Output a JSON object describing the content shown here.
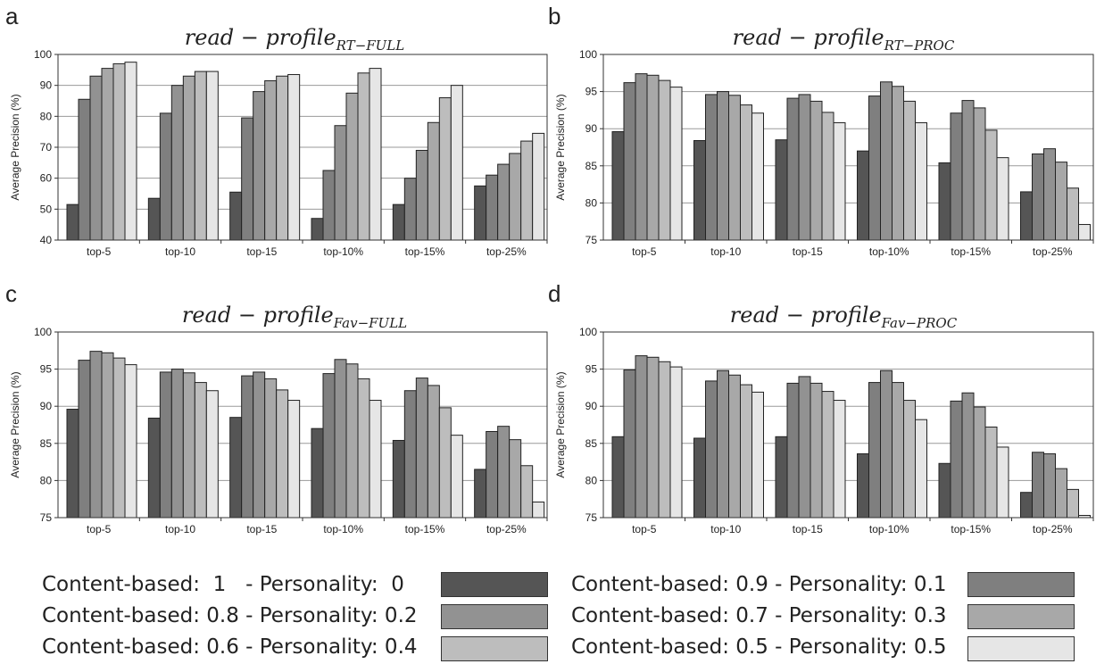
{
  "panels": [
    {
      "letter": "a",
      "title_base": "read − profile",
      "title_sub": "RT−FULL"
    },
    {
      "letter": "b",
      "title_base": "read − profile",
      "title_sub": "RT−PROC"
    },
    {
      "letter": "c",
      "title_base": "read − profile",
      "title_sub": "Fav−FULL"
    },
    {
      "letter": "d",
      "title_base": "read − profile",
      "title_sub": "Fav−PROC"
    }
  ],
  "series_colors": [
    "#555555",
    "#7f7f7f",
    "#929292",
    "#a8a8a8",
    "#bdbdbd",
    "#e6e6e6"
  ],
  "legend": [
    {
      "label": "Content-based:  1   - Personality:  0"
    },
    {
      "label": "Content-based: 0.9 - Personality: 0.1"
    },
    {
      "label": "Content-based: 0.8 - Personality: 0.2"
    },
    {
      "label": "Content-based: 0.7 - Personality: 0.3"
    },
    {
      "label": "Content-based: 0.6 - Personality: 0.4"
    },
    {
      "label": "Content-based: 0.5 - Personality: 0.5"
    }
  ],
  "chart_data": [
    {
      "type": "bar",
      "title": "read − profile RT−FULL",
      "ylabel": "Average Precision (%)",
      "ylim": [
        40,
        100
      ],
      "yticks": [
        40,
        50,
        60,
        70,
        80,
        90,
        100
      ],
      "categories": [
        "top-5",
        "top-10",
        "top-15",
        "top-10%",
        "top-15%",
        "top-25%"
      ],
      "grid": true,
      "series": [
        {
          "name": "Content-based:  1   - Personality:  0",
          "values": [
            51.5,
            53.5,
            55.5,
            47,
            51.5,
            57.5
          ]
        },
        {
          "name": "Content-based: 0.9 - Personality: 0.1",
          "values": [
            85.5,
            81,
            79.5,
            62.5,
            60,
            61
          ]
        },
        {
          "name": "Content-based: 0.8 - Personality: 0.2",
          "values": [
            93,
            90,
            88,
            77,
            69,
            64.5
          ]
        },
        {
          "name": "Content-based: 0.7 - Personality: 0.3",
          "values": [
            95.5,
            93,
            91.5,
            87.5,
            78,
            68
          ]
        },
        {
          "name": "Content-based: 0.6 - Personality: 0.4",
          "values": [
            97,
            94.5,
            93,
            94,
            86,
            72
          ]
        },
        {
          "name": "Content-based: 0.5 - Personality: 0.5",
          "values": [
            97.5,
            94.5,
            93.5,
            95.5,
            90,
            74.5
          ]
        }
      ]
    },
    {
      "type": "bar",
      "title": "read − profile RT−PROC",
      "ylabel": "Average Precision (%)",
      "ylim": [
        75,
        100
      ],
      "yticks": [
        75,
        80,
        85,
        90,
        95,
        100
      ],
      "categories": [
        "top-5",
        "top-10",
        "top-15",
        "top-10%",
        "top-15%",
        "top-25%"
      ],
      "grid": true,
      "series": [
        {
          "name": "Content-based:  1   - Personality:  0",
          "values": [
            89.6,
            88.4,
            88.5,
            87,
            85.4,
            81.5
          ]
        },
        {
          "name": "Content-based: 0.9 - Personality: 0.1",
          "values": [
            96.2,
            94.6,
            94.1,
            94.4,
            92.1,
            86.6
          ]
        },
        {
          "name": "Content-based: 0.8 - Personality: 0.2",
          "values": [
            97.4,
            95,
            94.6,
            96.3,
            93.8,
            87.3
          ]
        },
        {
          "name": "Content-based: 0.7 - Personality: 0.3",
          "values": [
            97.2,
            94.5,
            93.7,
            95.7,
            92.8,
            85.5
          ]
        },
        {
          "name": "Content-based: 0.6 - Personality: 0.4",
          "values": [
            96.5,
            93.2,
            92.2,
            93.7,
            89.8,
            82
          ]
        },
        {
          "name": "Content-based: 0.5 - Personality: 0.5",
          "values": [
            95.6,
            92.1,
            90.8,
            90.8,
            86.1,
            77.1
          ]
        }
      ]
    },
    {
      "type": "bar",
      "title": "read − profile Fav−FULL",
      "ylabel": "Average Precision (%)",
      "ylim": [
        75,
        100
      ],
      "yticks": [
        75,
        80,
        85,
        90,
        95,
        100
      ],
      "categories": [
        "top-5",
        "top-10",
        "top-15",
        "top-10%",
        "top-15%",
        "top-25%"
      ],
      "grid": true,
      "series": [
        {
          "name": "Content-based:  1   - Personality:  0",
          "values": [
            89.6,
            88.4,
            88.5,
            87,
            85.4,
            81.5
          ]
        },
        {
          "name": "Content-based: 0.9 - Personality: 0.1",
          "values": [
            96.2,
            94.6,
            94.1,
            94.4,
            92.1,
            86.6
          ]
        },
        {
          "name": "Content-based: 0.8 - Personality: 0.2",
          "values": [
            97.4,
            95,
            94.6,
            96.3,
            93.8,
            87.3
          ]
        },
        {
          "name": "Content-based: 0.7 - Personality: 0.3",
          "values": [
            97.2,
            94.5,
            93.7,
            95.7,
            92.8,
            85.5
          ]
        },
        {
          "name": "Content-based: 0.6 - Personality: 0.4",
          "values": [
            96.5,
            93.2,
            92.2,
            93.7,
            89.8,
            82
          ]
        },
        {
          "name": "Content-based: 0.5 - Personality: 0.5",
          "values": [
            95.6,
            92.1,
            90.8,
            90.8,
            86.1,
            77.1
          ]
        }
      ]
    },
    {
      "type": "bar",
      "title": "read − profile Fav−PROC",
      "ylabel": "Average Precision (%)",
      "ylim": [
        75,
        100
      ],
      "yticks": [
        75,
        80,
        85,
        90,
        95,
        100
      ],
      "categories": [
        "top-5",
        "top-10",
        "top-15",
        "top-10%",
        "top-15%",
        "top-25%"
      ],
      "grid": true,
      "series": [
        {
          "name": "Content-based:  1   - Personality:  0",
          "values": [
            85.9,
            85.7,
            85.9,
            83.6,
            82.3,
            78.4
          ]
        },
        {
          "name": "Content-based: 0.9 - Personality: 0.1",
          "values": [
            94.9,
            93.4,
            93.1,
            93.2,
            90.7,
            83.8
          ]
        },
        {
          "name": "Content-based: 0.8 - Personality: 0.2",
          "values": [
            96.8,
            94.8,
            94,
            94.8,
            91.8,
            83.6
          ]
        },
        {
          "name": "Content-based: 0.7 - Personality: 0.3",
          "values": [
            96.6,
            94.2,
            93.1,
            93.2,
            89.9,
            81.6
          ]
        },
        {
          "name": "Content-based: 0.6 - Personality: 0.4",
          "values": [
            96,
            92.9,
            92,
            90.8,
            87.2,
            78.8
          ]
        },
        {
          "name": "Content-based: 0.5 - Personality: 0.5",
          "values": [
            95.3,
            91.9,
            90.8,
            88.2,
            84.5,
            75.3
          ]
        }
      ]
    }
  ]
}
